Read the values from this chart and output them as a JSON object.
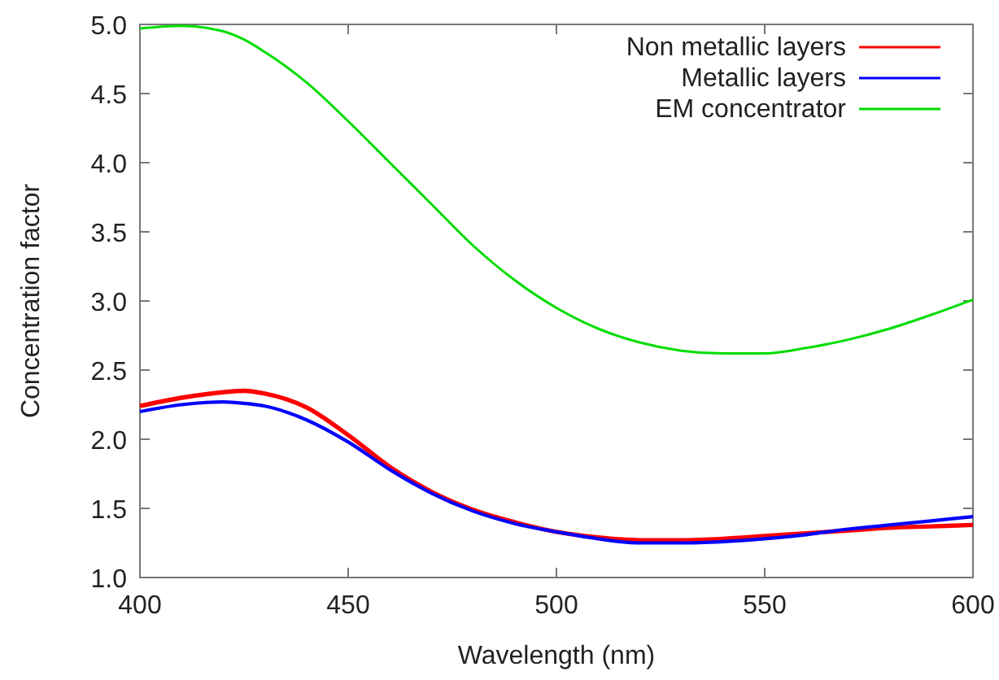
{
  "chart_data": {
    "type": "line",
    "xlabel": "Wavelength (nm)",
    "ylabel": "Concentration factor",
    "x": [
      400,
      410,
      420,
      425,
      430,
      440,
      450,
      460,
      470,
      480,
      490,
      500,
      510,
      520,
      530,
      540,
      550,
      560,
      570,
      580,
      590,
      600
    ],
    "xlim": [
      400,
      600
    ],
    "xticks": [
      400,
      450,
      500,
      550,
      600
    ],
    "ylim": [
      1.0,
      5.0
    ],
    "yticks": [
      {
        "value": 1,
        "label": "1.0"
      },
      {
        "value": 1.5,
        "label": "1.5"
      },
      {
        "value": 2,
        "label": "2.0"
      },
      {
        "value": 2.5,
        "label": "2.5"
      },
      {
        "value": 3,
        "label": "3.0"
      },
      {
        "value": 3.5,
        "label": "3.5"
      },
      {
        "value": 4,
        "label": "4.0"
      },
      {
        "value": 4.5,
        "label": "4.5"
      },
      {
        "value": 5,
        "label": "5.0"
      }
    ],
    "legend": "top right",
    "grid": false,
    "marker": "none",
    "line_style": "solid",
    "series": [
      {
        "name": "Non metallic layers",
        "color": "#ff0000",
        "values": [
          2.24,
          2.3,
          2.34,
          2.35,
          2.33,
          2.23,
          2.03,
          1.8,
          1.62,
          1.49,
          1.4,
          1.33,
          1.29,
          1.27,
          1.27,
          1.28,
          1.3,
          1.32,
          1.34,
          1.36,
          1.37,
          1.38
        ]
      },
      {
        "name": "Metallic layers",
        "color": "#0000ff",
        "values": [
          2.2,
          2.25,
          2.27,
          2.26,
          2.24,
          2.14,
          1.98,
          1.78,
          1.61,
          1.48,
          1.39,
          1.33,
          1.28,
          1.25,
          1.25,
          1.26,
          1.28,
          1.31,
          1.35,
          1.38,
          1.41,
          1.44
        ]
      },
      {
        "name": "EM concentrator",
        "color": "#00dd00",
        "values": [
          4.97,
          4.99,
          4.95,
          4.89,
          4.8,
          4.58,
          4.3,
          4.0,
          3.7,
          3.4,
          3.15,
          2.95,
          2.8,
          2.7,
          2.64,
          2.62,
          2.62,
          2.66,
          2.72,
          2.8,
          2.9,
          3.01
        ]
      }
    ]
  }
}
